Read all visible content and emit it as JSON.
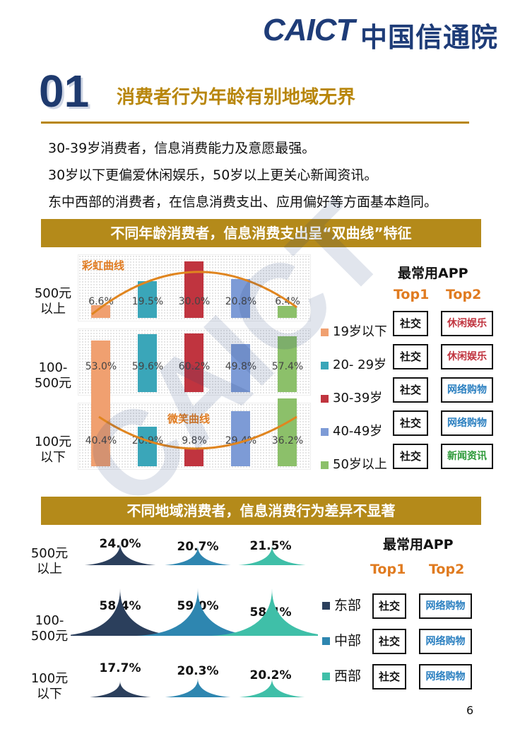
{
  "header": {
    "logo_en": "CAICT",
    "logo_cn": "中国信通院"
  },
  "section": {
    "number": "01",
    "title": "消费者行为年龄有别地域无界"
  },
  "intro": [
    "30-39岁消费者，信息消费能力及意愿最强。",
    "30岁以下更偏爱休闲娱乐，50岁以上更关心新闻资讯。",
    "东中西部的消费者，在信息消费支出、应用偏好等方面基本趋同。"
  ],
  "age_section": {
    "band_title": "不同年龄消费者，信息消费支出呈“双曲线”特征",
    "curve_labels": {
      "rainbow": "彩虹曲线",
      "smile": "微笑曲线"
    },
    "app_title": "最常用APP",
    "top1": "Top1",
    "top2": "Top2",
    "legend": [
      "19岁以下",
      "20- 29岁",
      "30-39岁",
      "40-49岁",
      "50岁以上"
    ],
    "colors": [
      "#f0a070",
      "#3aa6b9",
      "#c0343f",
      "#7d9bd6",
      "#8cc06a"
    ],
    "rows": [
      {
        "label_line1": "500元",
        "label_line2": "以上",
        "values": [
          "6.6%",
          "19.5%",
          "30.0%",
          "20.8%",
          "6.4%"
        ]
      },
      {
        "label_line1": "100-",
        "label_line2": "500元",
        "values": [
          "53.0%",
          "59.6%",
          "60.2%",
          "49.8%",
          "57.4%"
        ]
      },
      {
        "label_line1": "100元",
        "label_line2": "以下",
        "values": [
          "40.4%",
          "20.9%",
          "9.8%",
          "29.4%",
          "36.2%"
        ]
      }
    ],
    "apps": [
      {
        "top1": "社交",
        "top2": "休闲娱乐",
        "top2_color": "#c0343f"
      },
      {
        "top1": "社交",
        "top2": "休闲娱乐",
        "top2_color": "#c0343f"
      },
      {
        "top1": "社交",
        "top2": "网络购物",
        "top2_color": "#2a7fc0"
      },
      {
        "top1": "社交",
        "top2": "网络购物",
        "top2_color": "#2a7fc0"
      },
      {
        "top1": "社交",
        "top2": "新闻资讯",
        "top2_color": "#2e9a3a"
      }
    ]
  },
  "region_section": {
    "band_title": "不同地域消费者，信息消费行为差异不显著",
    "app_title": "最常用APP",
    "top1": "Top1",
    "top2": "Top2",
    "legend": [
      "东部",
      "中部",
      "西部"
    ],
    "colors": [
      "#2b3f5c",
      "#2e86b0",
      "#3fbfa8"
    ],
    "rows": [
      {
        "label_line1": "500元",
        "label_line2": "以上",
        "values": [
          "24.0%",
          "20.7%",
          "21.5%"
        ]
      },
      {
        "label_line1": "100-",
        "label_line2": "500元",
        "values": [
          "58.4%",
          "59.0%",
          "58.4%"
        ]
      },
      {
        "label_line1": "100元",
        "label_line2": "以下",
        "values": [
          "17.7%",
          "20.3%",
          "20.2%"
        ]
      }
    ],
    "apps": [
      {
        "top1": "社交",
        "top2": "网络购物"
      },
      {
        "top1": "社交",
        "top2": "网络购物"
      },
      {
        "top1": "社交",
        "top2": "网络购物"
      }
    ]
  },
  "chart_data": [
    {
      "type": "bar",
      "categories": [
        "19岁以下",
        "20- 29岁",
        "30-39岁",
        "40-49岁",
        "50岁以上"
      ],
      "series": [
        {
          "name": "500元以上",
          "values": [
            6.6,
            19.5,
            30.0,
            20.8,
            6.4
          ]
        },
        {
          "name": "100-500元",
          "values": [
            53.0,
            59.6,
            60.2,
            49.8,
            57.4
          ]
        },
        {
          "name": "100元以下",
          "values": [
            40.4,
            20.9,
            9.8,
            29.4,
            36.2
          ]
        }
      ],
      "annotations": [
        "彩虹曲线",
        "微笑曲线"
      ]
    },
    {
      "type": "area",
      "categories": [
        "东部",
        "中部",
        "西部"
      ],
      "series": [
        {
          "name": "500元以上",
          "values": [
            24.0,
            20.7,
            21.5
          ]
        },
        {
          "name": "100-500元",
          "values": [
            58.4,
            59.0,
            58.4
          ]
        },
        {
          "name": "100元以下",
          "values": [
            17.7,
            20.3,
            20.2
          ]
        }
      ]
    }
  ],
  "page_number": "6"
}
